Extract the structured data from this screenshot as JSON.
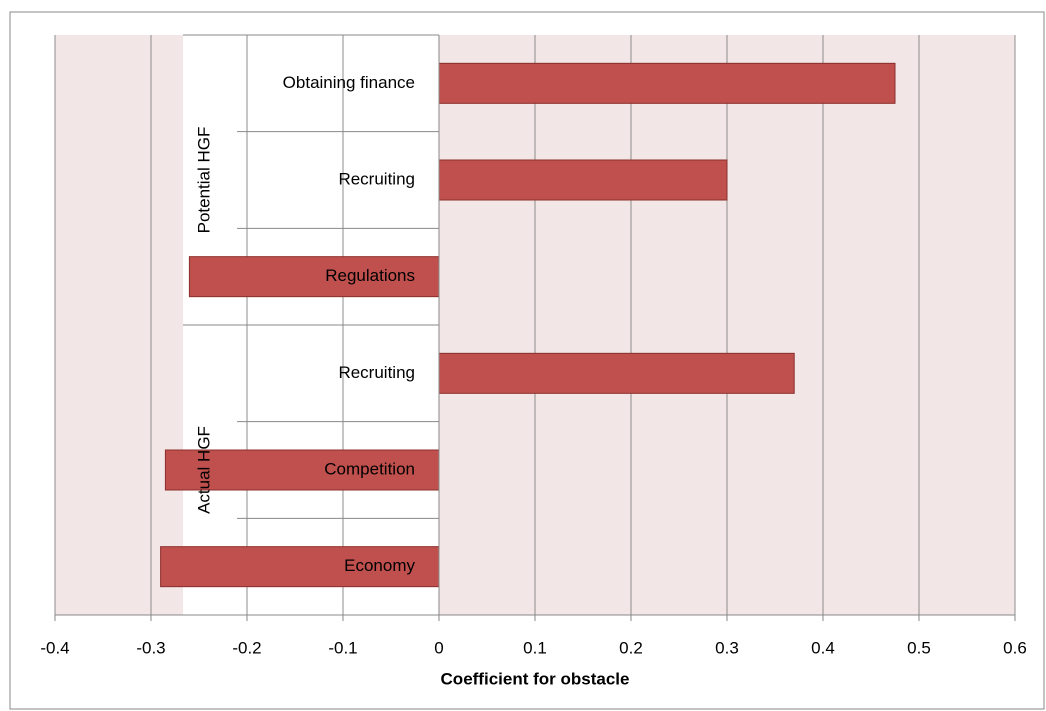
{
  "chart_data": {
    "type": "bar",
    "orientation": "horizontal",
    "x_label": "Coefficient for obstacle",
    "color": "#c0504d",
    "groups": [
      {
        "name": "Potential HGF",
        "categories": [
          "Obtaining finance",
          "Recruiting",
          "Regulations"
        ],
        "values": [
          0.475,
          0.3,
          -0.26
        ]
      },
      {
        "name": "Actual HGF",
        "categories": [
          "Recruiting",
          "Competition",
          "Economy"
        ],
        "values": [
          0.37,
          -0.285,
          -0.29
        ]
      }
    ],
    "xlim": [
      -0.4,
      0.6
    ],
    "xticks": [
      -0.4,
      -0.3,
      -0.2,
      -0.1,
      0,
      0.1,
      0.2,
      0.3,
      0.4,
      0.5,
      0.6
    ],
    "grid": true
  }
}
